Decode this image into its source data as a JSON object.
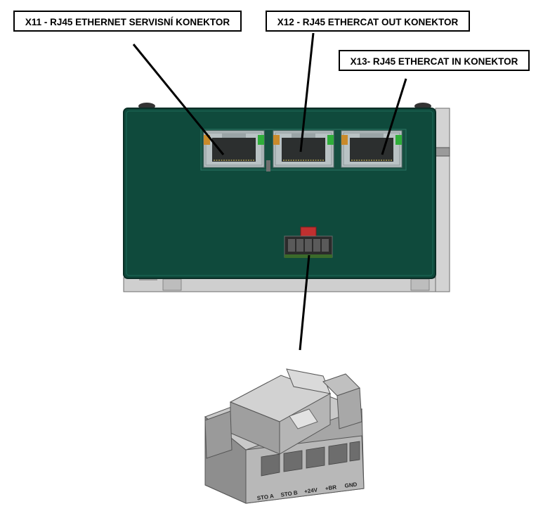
{
  "labels": {
    "x11": "X11 - RJ45 ETHERNET SERVISNÍ KONEKTOR",
    "x12": "X12 - RJ45 ETHERCAT OUT KONEKTOR",
    "x13": "X13- RJ45 ETHERCAT IN KONEKTOR"
  },
  "connector_pins": [
    "STO A",
    "STO B",
    "+24V",
    "+BR",
    "GND"
  ],
  "colors": {
    "device_body": "#0f4a3c",
    "device_edge": "#0a2e26",
    "chassis": "#c8c8c8",
    "rj45_shell": "#b9c2c4",
    "rj45_cavity": "#2c2f2f",
    "led_orange": "#c98a2a",
    "led_green": "#2fae3a",
    "plug_gray": "#a9a9a9"
  }
}
